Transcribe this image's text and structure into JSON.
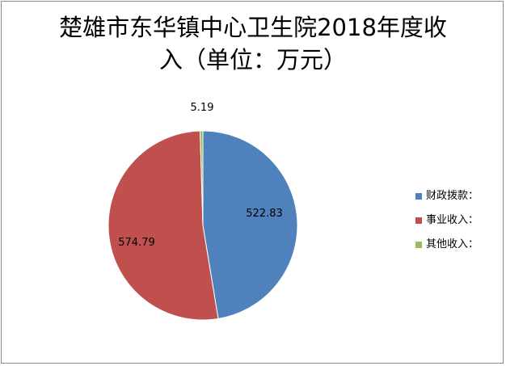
{
  "chart_data": {
    "type": "pie",
    "title_lines": [
      "楚雄市东华镇中心卫生院2018年度收",
      "入（单位：万元）"
    ],
    "categories": [
      "财政拨款：",
      "事业收入：",
      "其他收入："
    ],
    "values": [
      522.83,
      574.79,
      5.19
    ],
    "data_labels": [
      "522.83",
      "574.79",
      "5.19"
    ],
    "colors": [
      "#4f81bd",
      "#c0504d",
      "#9bbb59"
    ],
    "legend_position": "right"
  }
}
